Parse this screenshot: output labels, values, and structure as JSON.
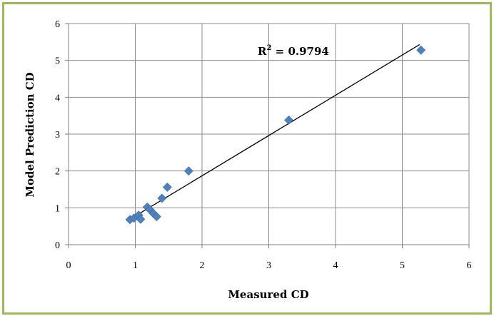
{
  "chart_data": {
    "type": "scatter",
    "xlabel": "Measured CD",
    "ylabel": "Model Prediction CD",
    "xlim": [
      0,
      6
    ],
    "ylim": [
      0,
      6
    ],
    "xticks": [
      0,
      1,
      2,
      3,
      4,
      5,
      6
    ],
    "yticks": [
      0,
      1,
      2,
      3,
      4,
      5,
      6
    ],
    "grid": true,
    "marker_color": "#4f81bd",
    "frame_color": "#9bbb59",
    "series": [
      {
        "marker": "diamond",
        "x": [
          0.92,
          0.98,
          1.05,
          1.08,
          1.18,
          1.22,
          1.27,
          1.32,
          1.4,
          1.48,
          1.8,
          3.3,
          5.28
        ],
        "y": [
          0.68,
          0.72,
          0.8,
          0.69,
          1.02,
          0.95,
          0.85,
          0.76,
          1.26,
          1.56,
          2.0,
          3.38,
          5.28
        ]
      }
    ],
    "trendline": {
      "x": [
        0.93,
        5.26
      ],
      "y": [
        0.7,
        5.43
      ]
    },
    "annotation": {
      "r2_label": "R",
      "r2_sup": "2",
      "r2_value": " = 0.9794"
    }
  }
}
